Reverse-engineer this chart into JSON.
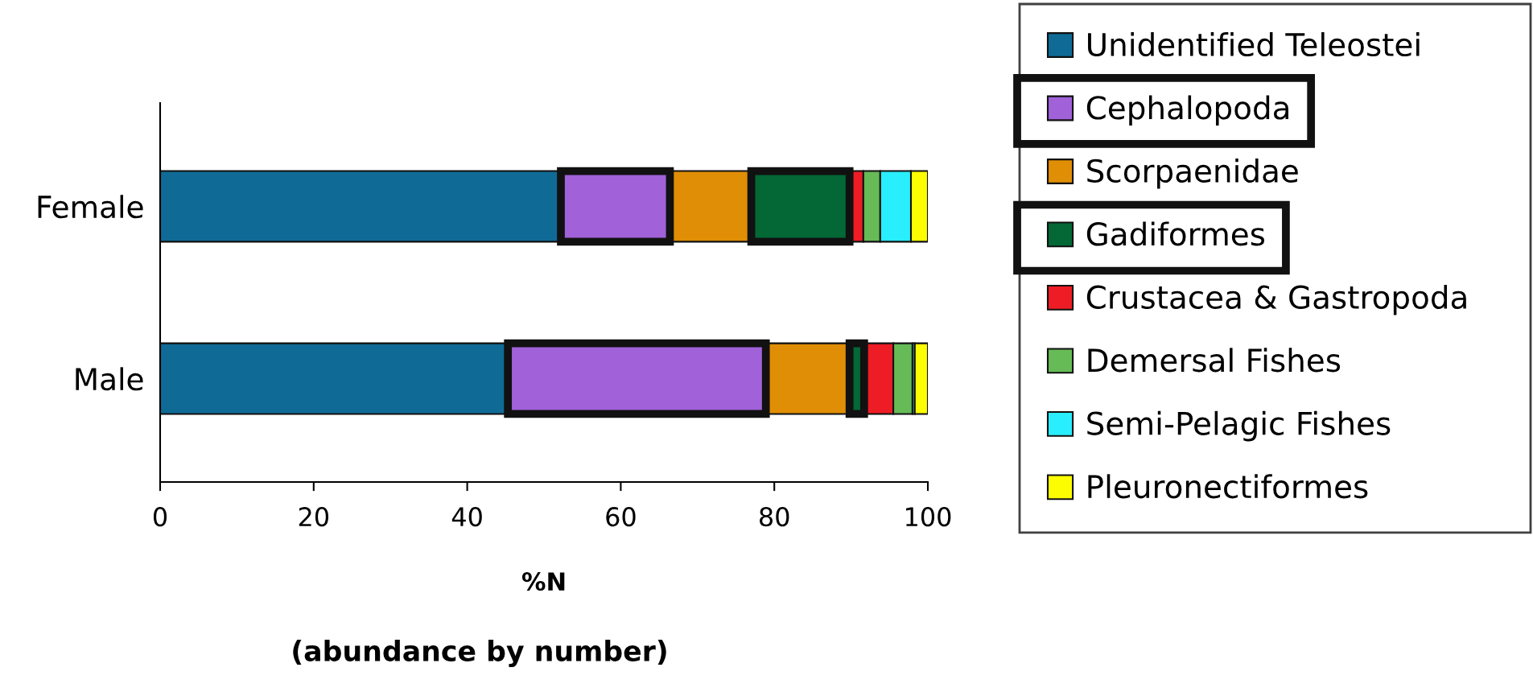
{
  "chart_data": {
    "type": "bar",
    "orientation": "horizontal",
    "stacked": true,
    "xlabel": "%N",
    "annotations": [
      "(abundance by number)"
    ],
    "categories": [
      "Female",
      "Male"
    ],
    "xlim": [
      0,
      100
    ],
    "xticks": [
      0,
      20,
      40,
      60,
      80,
      100
    ],
    "grid": false,
    "legend": "right",
    "series": [
      {
        "name": "Unidentified Teleostei",
        "color": "#0f6b96",
        "values": [
          52.2,
          45.3
        ]
      },
      {
        "name": "Cephalopoda",
        "color": "#a061d9",
        "values": [
          14.2,
          33.6
        ]
      },
      {
        "name": "Scorpaenidae",
        "color": "#e08e05",
        "values": [
          10.6,
          10.9
        ]
      },
      {
        "name": "Gadiformes",
        "color": "#036835",
        "values": [
          12.8,
          1.9
        ]
      },
      {
        "name": "Crustacea & Gastropoda",
        "color": "#ee1c25",
        "values": [
          1.8,
          3.8
        ]
      },
      {
        "name": "Demersal Fishes",
        "color": "#66bb56",
        "values": [
          2.2,
          2.5
        ]
      },
      {
        "name": "Semi-Pelagic Fishes",
        "color": "#29eefd",
        "values": [
          4.0,
          0.3
        ]
      },
      {
        "name": "Pleuronectiformes",
        "color": "#fdfd02",
        "values": [
          2.2,
          1.7
        ]
      }
    ]
  }
}
